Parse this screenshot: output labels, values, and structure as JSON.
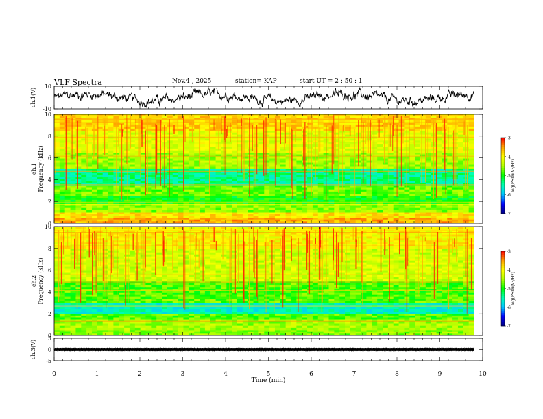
{
  "header": {
    "title": "VLF Spectra",
    "date": "Nov.4 , 2025",
    "station": "station= KAP",
    "start_ut": "start UT = 2 : 50 : 1"
  },
  "colors": {
    "colormap": [
      "#000080",
      "#0000ff",
      "#00c8ff",
      "#00ffb4",
      "#00ff00",
      "#b4ff00",
      "#ffff00",
      "#ffa000",
      "#ff0000",
      "#ffffff"
    ]
  },
  "chart_data": [
    {
      "type": "line",
      "name": "ch1-waveform",
      "ylabel": "ch.1(V)",
      "ylim": [
        -10,
        10
      ],
      "yticks": [
        "10",
        "-10"
      ],
      "xlim": [
        0,
        10
      ],
      "series": [
        {
          "name": "ch.1",
          "mean": 0,
          "amplitude": 4
        }
      ]
    },
    {
      "type": "heatmap",
      "name": "ch1-spectrogram",
      "ylabel": "ch.1 Frequency (kHz)",
      "ylim": [
        0,
        10
      ],
      "yticks": [
        "0",
        "2",
        "4",
        "6",
        "8",
        "10"
      ],
      "xlim": [
        0,
        10
      ],
      "data_end_min": 9.8,
      "colorbar": {
        "label": "log(PSD)(V²/Hz)",
        "range": [
          -7,
          -3
        ],
        "ticks": [
          "-3",
          "-4",
          "-5",
          "-6",
          "-7"
        ]
      },
      "bands": [
        {
          "f": [
            0.0,
            0.5
          ],
          "level": -3.6
        },
        {
          "f": [
            0.5,
            1.0
          ],
          "level": -3.9
        },
        {
          "f": [
            1.0,
            1.8
          ],
          "level": -4.6
        },
        {
          "f": [
            1.8,
            2.5
          ],
          "level": -5.0
        },
        {
          "f": [
            2.5,
            3.5
          ],
          "level": -4.7
        },
        {
          "f": [
            3.5,
            5.0
          ],
          "level": -5.4
        },
        {
          "f": [
            5.0,
            6.5
          ],
          "level": -4.5
        },
        {
          "f": [
            6.5,
            8.5
          ],
          "level": -4.2
        },
        {
          "f": [
            8.5,
            10.0
          ],
          "level": -3.8
        }
      ]
    },
    {
      "type": "heatmap",
      "name": "ch2-spectrogram",
      "ylabel": "ch.2 Frequency (kHz)",
      "ylim": [
        0,
        10
      ],
      "yticks": [
        "0",
        "2",
        "4",
        "6",
        "8",
        "10"
      ],
      "xlim": [
        0,
        10
      ],
      "data_end_min": 9.8,
      "colorbar": {
        "label": "log(PSD)(V²/Hz)",
        "range": [
          -7,
          -3
        ],
        "ticks": [
          "-3",
          "-4",
          "-5",
          "-6",
          "-7"
        ]
      },
      "bands": [
        {
          "f": [
            0.0,
            0.5
          ],
          "level": -4.6
        },
        {
          "f": [
            0.5,
            1.5
          ],
          "level": -4.5
        },
        {
          "f": [
            1.5,
            2.0
          ],
          "level": -4.8
        },
        {
          "f": [
            2.0,
            3.0
          ],
          "level": -5.6
        },
        {
          "f": [
            3.0,
            5.0
          ],
          "level": -4.8
        },
        {
          "f": [
            5.0,
            8.0
          ],
          "level": -4.3
        },
        {
          "f": [
            8.0,
            10.0
          ],
          "level": -4.0
        }
      ]
    },
    {
      "type": "line",
      "name": "ch3-waveform",
      "ylabel": "ch.3(V)",
      "ylim": [
        -5,
        5
      ],
      "yticks": [
        "5",
        "0",
        "-5"
      ],
      "xlim": [
        0,
        10
      ],
      "series": [
        {
          "name": "ch.3",
          "mean": 0,
          "amplitude": 0.4
        }
      ]
    }
  ],
  "xaxis": {
    "label": "Time (min)",
    "range": [
      0,
      10
    ],
    "ticks": [
      "0",
      "1",
      "2",
      "3",
      "4",
      "5",
      "6",
      "7",
      "8",
      "9",
      "10"
    ]
  }
}
